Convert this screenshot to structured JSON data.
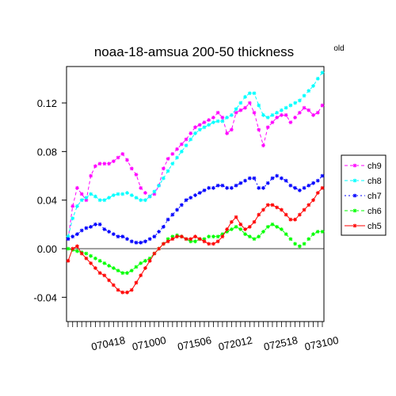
{
  "chart_data": {
    "type": "line",
    "title": "noaa-18-amsua   200-50 thickness",
    "note": "old",
    "xlabel": "",
    "ylabel": "",
    "ylim": [
      -0.06,
      0.15
    ],
    "yticks": [
      -0.04,
      0.0,
      0.04,
      0.08,
      0.12
    ],
    "ytick_labels": [
      "-0.04",
      "0.00",
      "0.04",
      "0.08",
      "0.12"
    ],
    "xtick_labels": [
      "070418",
      "071000",
      "071506",
      "072012",
      "072518",
      "073100"
    ],
    "reference_line": 0.0,
    "legend_position": "right",
    "series": [
      {
        "name": "ch9",
        "color": "#ff00ff",
        "dash": "4,3",
        "values": [
          0.008,
          0.035,
          0.05,
          0.045,
          0.04,
          0.06,
          0.068,
          0.07,
          0.07,
          0.07,
          0.072,
          0.075,
          0.078,
          0.073,
          0.066,
          0.061,
          0.05,
          0.046,
          0.043,
          0.045,
          0.052,
          0.066,
          0.074,
          0.078,
          0.082,
          0.086,
          0.09,
          0.095,
          0.1,
          0.102,
          0.104,
          0.106,
          0.108,
          0.112,
          0.108,
          0.095,
          0.098,
          0.112,
          0.114,
          0.116,
          0.12,
          0.112,
          0.098,
          0.085,
          0.1,
          0.104,
          0.108,
          0.11,
          0.11,
          0.104,
          0.108,
          0.112,
          0.116,
          0.114,
          0.11,
          0.112,
          0.118
        ]
      },
      {
        "name": "ch8",
        "color": "#00ffff",
        "dash": "4,3",
        "values": [
          0.01,
          0.025,
          0.035,
          0.04,
          0.042,
          0.045,
          0.043,
          0.04,
          0.04,
          0.042,
          0.044,
          0.045,
          0.045,
          0.046,
          0.044,
          0.042,
          0.04,
          0.04,
          0.043,
          0.047,
          0.052,
          0.058,
          0.064,
          0.07,
          0.075,
          0.08,
          0.085,
          0.09,
          0.095,
          0.098,
          0.1,
          0.102,
          0.104,
          0.105,
          0.105,
          0.108,
          0.11,
          0.115,
          0.12,
          0.125,
          0.128,
          0.128,
          0.118,
          0.11,
          0.108,
          0.11,
          0.112,
          0.114,
          0.116,
          0.118,
          0.12,
          0.122,
          0.126,
          0.13,
          0.134,
          0.14,
          0.145
        ]
      },
      {
        "name": "ch7",
        "color": "#0000ff",
        "dash": "2,3",
        "values": [
          0.008,
          0.01,
          0.012,
          0.015,
          0.017,
          0.018,
          0.02,
          0.02,
          0.016,
          0.014,
          0.012,
          0.01,
          0.01,
          0.008,
          0.006,
          0.005,
          0.005,
          0.006,
          0.008,
          0.01,
          0.014,
          0.018,
          0.024,
          0.028,
          0.032,
          0.036,
          0.04,
          0.042,
          0.044,
          0.046,
          0.048,
          0.05,
          0.05,
          0.052,
          0.052,
          0.05,
          0.05,
          0.052,
          0.054,
          0.056,
          0.058,
          0.058,
          0.05,
          0.05,
          0.054,
          0.058,
          0.06,
          0.058,
          0.056,
          0.052,
          0.05,
          0.048,
          0.05,
          0.052,
          0.054,
          0.056,
          0.06
        ]
      },
      {
        "name": "ch6",
        "color": "#00ff00",
        "dash": "4,3",
        "values": [
          0.0,
          -0.001,
          -0.002,
          -0.003,
          -0.004,
          -0.006,
          -0.008,
          -0.01,
          -0.012,
          -0.014,
          -0.016,
          -0.018,
          -0.02,
          -0.02,
          -0.018,
          -0.015,
          -0.012,
          -0.01,
          -0.008,
          -0.004,
          0.0,
          0.004,
          0.008,
          0.01,
          0.011,
          0.01,
          0.008,
          0.006,
          0.006,
          0.008,
          0.008,
          0.01,
          0.01,
          0.01,
          0.012,
          0.014,
          0.016,
          0.018,
          0.016,
          0.012,
          0.01,
          0.008,
          0.01,
          0.014,
          0.018,
          0.02,
          0.018,
          0.016,
          0.012,
          0.008,
          0.004,
          0.002,
          0.004,
          0.008,
          0.012,
          0.014,
          0.014
        ]
      },
      {
        "name": "ch5",
        "color": "#ff0000",
        "dash": "",
        "values": [
          -0.01,
          0.0,
          0.002,
          -0.004,
          -0.008,
          -0.012,
          -0.016,
          -0.02,
          -0.022,
          -0.026,
          -0.03,
          -0.034,
          -0.036,
          -0.036,
          -0.034,
          -0.028,
          -0.022,
          -0.016,
          -0.01,
          -0.004,
          0.0,
          0.004,
          0.006,
          0.008,
          0.01,
          0.01,
          0.008,
          0.008,
          0.01,
          0.008,
          0.006,
          0.004,
          0.004,
          0.006,
          0.01,
          0.016,
          0.022,
          0.026,
          0.02,
          0.016,
          0.018,
          0.022,
          0.028,
          0.032,
          0.036,
          0.036,
          0.034,
          0.032,
          0.028,
          0.024,
          0.024,
          0.028,
          0.032,
          0.036,
          0.04,
          0.046,
          0.05
        ]
      }
    ]
  }
}
